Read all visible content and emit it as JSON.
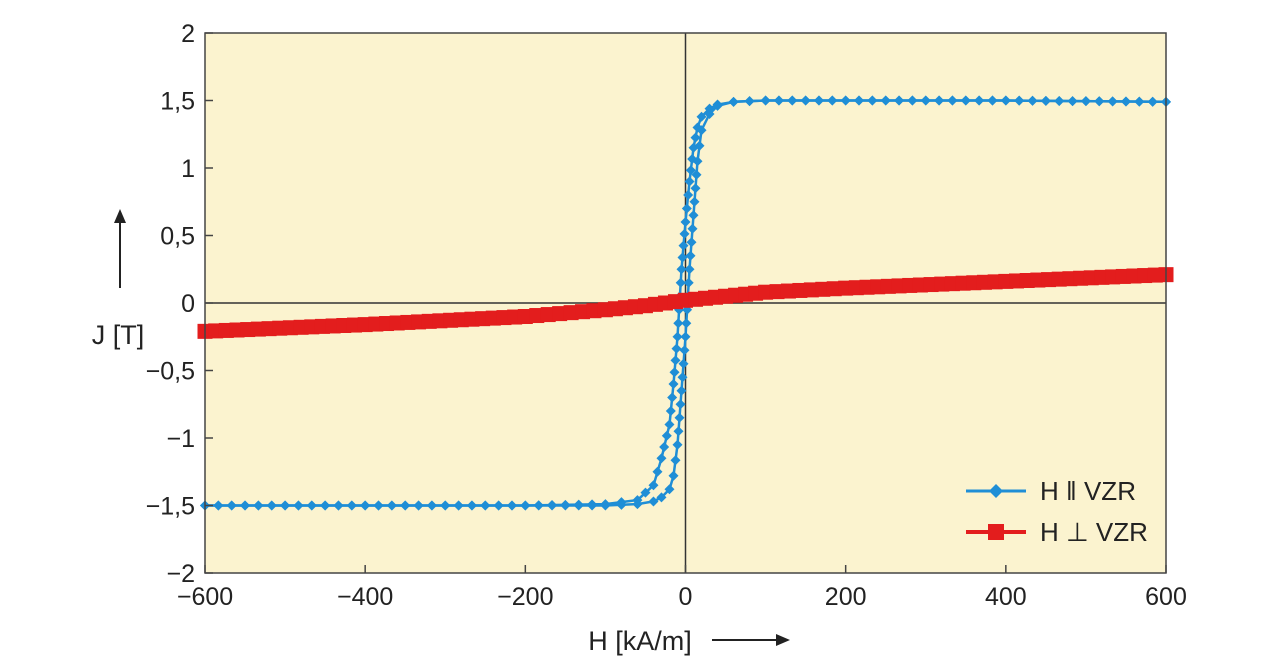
{
  "chart_data": {
    "type": "line",
    "title": "",
    "xlabel": "H [kA/m]",
    "ylabel": "J [T]",
    "xlim": [
      -600,
      600
    ],
    "ylim": [
      -2,
      2
    ],
    "xticks": [
      -600,
      -400,
      -200,
      0,
      200,
      400,
      600
    ],
    "xtick_labels": [
      "−600",
      "−400",
      "−200",
      "0",
      "200",
      "400",
      "600"
    ],
    "yticks": [
      2,
      1.5,
      1,
      0.5,
      0,
      -0.5,
      -1,
      -1.5,
      -2
    ],
    "ytick_labels": [
      "2",
      "1,5",
      "1",
      "0,5",
      "0",
      "−0,5",
      "−1",
      "−1,5",
      "−2"
    ],
    "grid": false,
    "legend_position": "bottom-right",
    "colors": {
      "background": "#fbf3cf",
      "parallel": "#1f8ed6",
      "perpendicular": "#e31d1d"
    },
    "series": [
      {
        "name": "H ‖ VZR",
        "marker": "diamond",
        "branches": [
          {
            "x": [
              -600,
              -400,
              -200,
              -100,
              -60,
              -40,
              -30,
              -20,
              -15,
              -10,
              -5,
              0,
              5,
              10,
              15,
              20,
              30,
              40,
              60,
              100,
              200,
              400,
              600
            ],
            "y": [
              -1.5,
              -1.5,
              -1.5,
              -1.49,
              -1.46,
              -1.35,
              -1.15,
              -0.9,
              -0.6,
              -0.25,
              0.25,
              0.6,
              0.9,
              1.15,
              1.3,
              1.38,
              1.44,
              1.47,
              1.49,
              1.5,
              1.5,
              1.5,
              1.49
            ]
          },
          {
            "x": [
              600,
              400,
              200,
              100,
              60,
              40,
              30,
              20,
              15,
              10,
              5,
              0,
              -5,
              -10,
              -15,
              -20,
              -30,
              -40,
              -60,
              -100,
              -200,
              -400,
              -600
            ],
            "y": [
              1.49,
              1.5,
              1.5,
              1.5,
              1.49,
              1.46,
              1.4,
              1.28,
              1.05,
              0.65,
              0.25,
              -0.25,
              -0.65,
              -1.05,
              -1.28,
              -1.38,
              -1.44,
              -1.47,
              -1.49,
              -1.5,
              -1.5,
              -1.5,
              -1.5
            ]
          }
        ]
      },
      {
        "name": "H ⊥ VZR",
        "marker": "square",
        "branches": [
          {
            "x": [
              -600,
              -400,
              -200,
              -100,
              -50,
              0,
              50,
              100,
              200,
              400,
              600
            ],
            "y": [
              -0.21,
              -0.16,
              -0.1,
              -0.05,
              -0.02,
              0.02,
              0.05,
              0.08,
              0.11,
              0.16,
              0.21
            ]
          }
        ]
      }
    ]
  }
}
